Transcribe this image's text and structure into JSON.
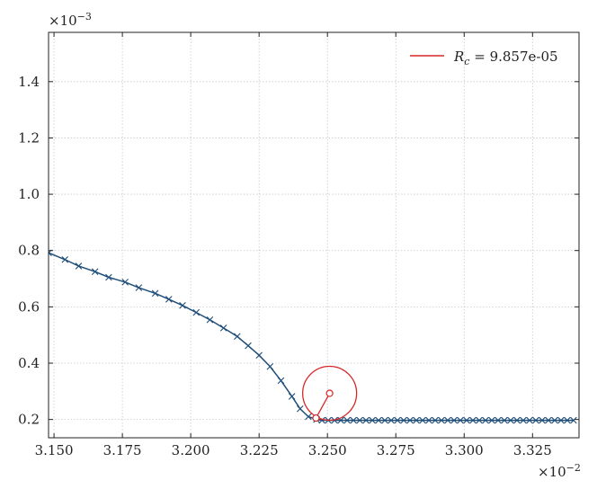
{
  "chart_data": {
    "type": "line",
    "x_multiplier_label": "×10",
    "x_multiplier_exp": "−2",
    "y_multiplier_label": "×10",
    "y_multiplier_exp": "−3",
    "xlim": [
      3.148,
      3.342
    ],
    "ylim": [
      0.135,
      1.575
    ],
    "xticks": [
      3.15,
      3.175,
      3.2,
      3.225,
      3.25,
      3.275,
      3.3,
      3.325
    ],
    "xtick_labels": [
      "3.150",
      "3.175",
      "3.200",
      "3.225",
      "3.250",
      "3.275",
      "3.300",
      "3.325"
    ],
    "yticks": [
      0.2,
      0.4,
      0.6,
      0.8,
      1.0,
      1.2,
      1.4
    ],
    "ytick_labels": [
      "0.2",
      "0.4",
      "0.6",
      "0.8",
      "1.0",
      "1.2",
      "1.4"
    ],
    "grid": true,
    "legend_placement": "top-right",
    "series": [
      {
        "marker": "x",
        "color": "#1f4e79",
        "x": [
          3.148,
          3.154,
          3.159,
          3.165,
          3.17,
          3.176,
          3.181,
          3.187,
          3.192,
          3.197,
          3.202,
          3.207,
          3.212,
          3.217,
          3.221,
          3.225,
          3.229,
          3.233,
          3.237,
          3.24,
          3.243,
          3.246
        ],
        "y": [
          0.792,
          0.768,
          0.745,
          0.725,
          0.705,
          0.688,
          0.668,
          0.648,
          0.627,
          0.605,
          0.58,
          0.554,
          0.525,
          0.495,
          0.462,
          0.428,
          0.388,
          0.338,
          0.282,
          0.238,
          0.21,
          0.2
        ],
        "flat_start": 3.248,
        "flat_end": 3.342,
        "flat_step": 0.0023,
        "flat_y": 0.197
      },
      {
        "name": "R_c = 9.857e-05",
        "color": "#d62728",
        "type": "circle",
        "center": [
          3.2508,
          0.293
        ],
        "radius_x": 0.00986,
        "start": [
          3.2458,
          0.205
        ]
      }
    ],
    "legend": {
      "symbol": "R",
      "subscript": "c",
      "value_text": " = 9.857e-05"
    }
  }
}
